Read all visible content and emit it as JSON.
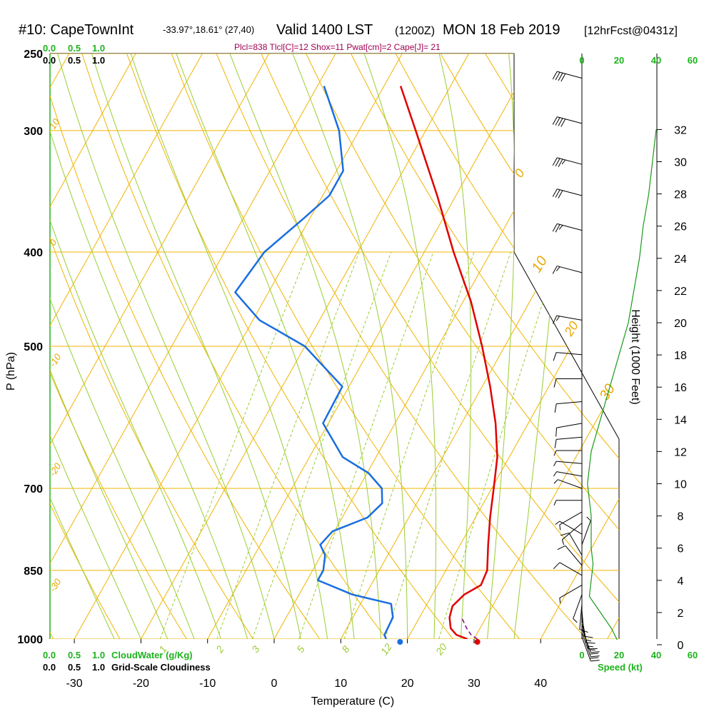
{
  "header": {
    "station": "#10: CapeTownInt",
    "coords": "-33.97°,18.61° (27,40)",
    "valid": "Valid 1400 LST",
    "zulu": "(1200Z)",
    "date": "MON 18 Feb 2019",
    "fcst": "[12hrFcst@0431z]"
  },
  "stats_line": "Plcl=838 Tlcl[C]=12 Shox=11 Pwat[cm]=2 Cape[J]= 21",
  "left_scale": {
    "cloudwater_ticks": [
      "0.0",
      "0.5",
      "1.0"
    ],
    "cloudiness_ticks": [
      "0.0",
      "0.5",
      "1.0"
    ],
    "cloudwater_label": "CloudWater (g/Kg)",
    "cloudiness_label": "Grid-Scale Cloudiness"
  },
  "speed_axis": {
    "ticks": [
      "0",
      "20",
      "40",
      "60"
    ],
    "label": "Speed (kt)"
  },
  "chart_data": {
    "type": "line",
    "diagram": "skew-T log-P",
    "xlabel": "Temperature (C)",
    "ylabel": "P (hPa)",
    "y2label": "Height (1000 Feet)",
    "x_ticks": [
      -30,
      -20,
      -10,
      0,
      10,
      20,
      30,
      40
    ],
    "p_ticks": [
      250,
      300,
      400,
      500,
      700,
      850,
      1000
    ],
    "height_ticks": [
      0,
      2,
      4,
      6,
      8,
      10,
      12,
      14,
      16,
      18,
      20,
      22,
      24,
      26,
      28,
      30,
      32
    ],
    "isotherm_labels": [
      "10",
      "0",
      "-10",
      "-20",
      "-30",
      "-40"
    ],
    "mixing_ratio_labels": [
      "1",
      "2",
      "3",
      "5",
      "8",
      "12",
      "20"
    ],
    "grid": true,
    "series": [
      {
        "quantity": "temperature",
        "color": "#e00000",
        "points": [
          {
            "p": 1000,
            "t": 29.0
          },
          {
            "p": 990,
            "t": 27.0
          },
          {
            "p": 975,
            "t": 25.6
          },
          {
            "p": 950,
            "t": 24.5
          },
          {
            "p": 925,
            "t": 24.0
          },
          {
            "p": 900,
            "t": 24.8
          },
          {
            "p": 880,
            "t": 26.5
          },
          {
            "p": 850,
            "t": 26.2
          },
          {
            "p": 800,
            "t": 24.2
          },
          {
            "p": 750,
            "t": 22.2
          },
          {
            "p": 700,
            "t": 20.3
          },
          {
            "p": 650,
            "t": 18.2
          },
          {
            "p": 600,
            "t": 15.1
          },
          {
            "p": 550,
            "t": 11.2
          },
          {
            "p": 500,
            "t": 6.6
          },
          {
            "p": 450,
            "t": 1.2
          },
          {
            "p": 400,
            "t": -5.6
          },
          {
            "p": 350,
            "t": -12.8
          },
          {
            "p": 300,
            "t": -21.5
          },
          {
            "p": 270,
            "t": -27.5
          }
        ]
      },
      {
        "quantity": "dewpoint",
        "color": "#1a6ee0",
        "points": [
          {
            "p": 1000,
            "t": 16.8
          },
          {
            "p": 990,
            "t": 16.2
          },
          {
            "p": 950,
            "t": 16.0
          },
          {
            "p": 920,
            "t": 14.6
          },
          {
            "p": 900,
            "t": 8.0
          },
          {
            "p": 870,
            "t": 1.6
          },
          {
            "p": 850,
            "t": 1.6
          },
          {
            "p": 820,
            "t": 0.6
          },
          {
            "p": 800,
            "t": -1.0
          },
          {
            "p": 775,
            "t": -0.3
          },
          {
            "p": 750,
            "t": 3.8
          },
          {
            "p": 725,
            "t": 4.8
          },
          {
            "p": 700,
            "t": 3.5
          },
          {
            "p": 675,
            "t": 0.2
          },
          {
            "p": 650,
            "t": -5.0
          },
          {
            "p": 600,
            "t": -10.8
          },
          {
            "p": 550,
            "t": -11.0
          },
          {
            "p": 500,
            "t": -20.0
          },
          {
            "p": 470,
            "t": -29.0
          },
          {
            "p": 440,
            "t": -35.0
          },
          {
            "p": 400,
            "t": -34.0
          },
          {
            "p": 370,
            "t": -31.0
          },
          {
            "p": 350,
            "t": -29.0
          },
          {
            "p": 330,
            "t": -29.0
          },
          {
            "p": 300,
            "t": -33.0
          },
          {
            "p": 270,
            "t": -39.0
          }
        ]
      },
      {
        "quantity": "parcel",
        "color": "#800080",
        "style": "dashed",
        "points": [
          {
            "p": 1000,
            "t": 30.5
          },
          {
            "p": 990,
            "t": 29.2
          },
          {
            "p": 975,
            "t": 28.0
          },
          {
            "p": 960,
            "t": 27.0
          },
          {
            "p": 950,
            "t": 26.3
          }
        ]
      }
    ],
    "surface_markers": [
      {
        "quantity": "temperature",
        "p": 1000,
        "t": 30.5,
        "color": "#e00000"
      },
      {
        "quantity": "dewpoint",
        "p": 1000,
        "t": 18.9,
        "color": "#1a6ee0"
      }
    ],
    "wind_speed_profile_kt": [
      {
        "height_kft": 0.3,
        "speed": 19
      },
      {
        "height_kft": 1.0,
        "speed": 16
      },
      {
        "height_kft": 2.0,
        "speed": 10
      },
      {
        "height_kft": 3.0,
        "speed": 4
      },
      {
        "height_kft": 4.0,
        "speed": 5
      },
      {
        "height_kft": 5.0,
        "speed": 6
      },
      {
        "height_kft": 6.0,
        "speed": 5
      },
      {
        "height_kft": 8.0,
        "speed": 5
      },
      {
        "height_kft": 10.0,
        "speed": 3
      },
      {
        "height_kft": 12.0,
        "speed": 5
      },
      {
        "height_kft": 14.0,
        "speed": 10
      },
      {
        "height_kft": 16.0,
        "speed": 15
      },
      {
        "height_kft": 18.0,
        "speed": 20
      },
      {
        "height_kft": 20.0,
        "speed": 25
      },
      {
        "height_kft": 22.0,
        "speed": 28
      },
      {
        "height_kft": 24.0,
        "speed": 31
      },
      {
        "height_kft": 26.0,
        "speed": 33
      },
      {
        "height_kft": 28.0,
        "speed": 36
      },
      {
        "height_kft": 30.0,
        "speed": 38
      },
      {
        "height_kft": 32.0,
        "speed": 40
      }
    ],
    "wind_barbs": [
      {
        "p": 995,
        "dir": 160,
        "speed": 18
      },
      {
        "p": 985,
        "dir": 160,
        "speed": 18
      },
      {
        "p": 975,
        "dir": 160,
        "speed": 17
      },
      {
        "p": 965,
        "dir": 165,
        "speed": 16
      },
      {
        "p": 950,
        "dir": 170,
        "speed": 14
      },
      {
        "p": 935,
        "dir": 175,
        "speed": 11
      },
      {
        "p": 920,
        "dir": 185,
        "speed": 8
      },
      {
        "p": 900,
        "dir": 200,
        "speed": 6
      },
      {
        "p": 880,
        "dir": 240,
        "speed": 6
      },
      {
        "p": 860,
        "dir": 300,
        "speed": 8
      },
      {
        "p": 840,
        "dir": 320,
        "speed": 9
      },
      {
        "p": 820,
        "dir": 330,
        "speed": 8
      },
      {
        "p": 800,
        "dir": 20,
        "speed": 7
      },
      {
        "p": 780,
        "dir": 300,
        "speed": 7
      },
      {
        "p": 760,
        "dir": 230,
        "speed": 7
      },
      {
        "p": 740,
        "dir": 240,
        "speed": 6
      },
      {
        "p": 720,
        "dir": 270,
        "speed": 6
      },
      {
        "p": 700,
        "dir": 290,
        "speed": 6
      },
      {
        "p": 680,
        "dir": 280,
        "speed": 7
      },
      {
        "p": 660,
        "dir": 275,
        "speed": 7
      },
      {
        "p": 640,
        "dir": 270,
        "speed": 7
      },
      {
        "p": 620,
        "dir": 265,
        "speed": 8
      },
      {
        "p": 600,
        "dir": 260,
        "speed": 9
      },
      {
        "p": 570,
        "dir": 265,
        "speed": 10
      },
      {
        "p": 540,
        "dir": 270,
        "speed": 10
      },
      {
        "p": 510,
        "dir": 275,
        "speed": 11
      },
      {
        "p": 470,
        "dir": 280,
        "speed": 13
      },
      {
        "p": 420,
        "dir": 285,
        "speed": 16
      },
      {
        "p": 380,
        "dir": 285,
        "speed": 25
      },
      {
        "p": 350,
        "dir": 285,
        "speed": 30
      },
      {
        "p": 325,
        "dir": 285,
        "speed": 35
      },
      {
        "p": 295,
        "dir": 285,
        "speed": 38
      },
      {
        "p": 265,
        "dir": 285,
        "speed": 40
      }
    ]
  }
}
